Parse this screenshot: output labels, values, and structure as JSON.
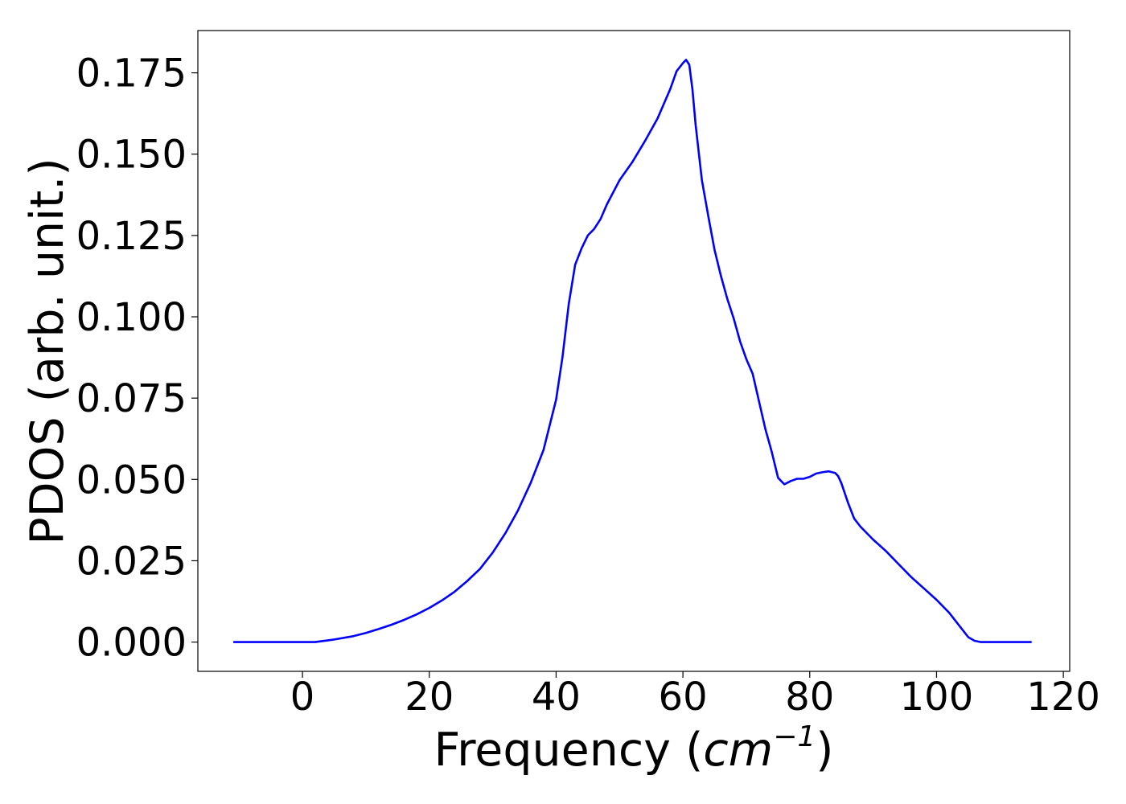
{
  "chart_data": {
    "type": "line",
    "title": "",
    "xlabel_main": "Frequency (",
    "xlabel_unit": "cm",
    "xlabel_exp": "−1",
    "xlabel_close": ")",
    "ylabel": "PDOS (arb. unit.)",
    "xlim": [
      -16.5,
      121
    ],
    "ylim": [
      -0.009,
      0.188
    ],
    "xticks": [
      0,
      20,
      40,
      60,
      80,
      100,
      120
    ],
    "xtick_labels": [
      "0",
      "20",
      "40",
      "60",
      "80",
      "100",
      "120"
    ],
    "yticks": [
      0.0,
      0.025,
      0.05,
      0.075,
      0.1,
      0.125,
      0.15,
      0.175
    ],
    "ytick_labels": [
      "0.000",
      "0.025",
      "0.050",
      "0.075",
      "0.100",
      "0.125",
      "0.150",
      "0.175"
    ],
    "grid": false,
    "series": [
      {
        "color": "#0000ff",
        "x": [
          -10.9,
          0,
          2,
          5,
          8,
          10,
          12,
          14,
          16,
          18,
          20,
          22,
          24,
          26,
          28,
          30,
          32,
          34,
          36,
          38,
          40,
          41,
          42,
          43,
          44,
          45,
          46,
          47,
          48,
          50,
          52,
          54,
          56,
          58,
          59,
          60,
          60.5,
          61,
          61.5,
          62,
          63,
          64,
          65,
          66,
          67,
          68,
          69,
          70,
          71,
          72,
          73,
          74,
          75,
          76,
          77,
          78,
          79,
          80,
          81,
          82,
          83,
          84,
          84.5,
          85,
          86,
          87,
          88,
          90,
          92,
          94,
          96,
          98,
          100,
          102,
          103,
          104,
          105,
          106,
          107,
          110,
          115
        ],
        "y": [
          0.0,
          0.0,
          0.0,
          0.0008,
          0.0018,
          0.0028,
          0.004,
          0.0053,
          0.0068,
          0.0085,
          0.0105,
          0.0128,
          0.0155,
          0.0188,
          0.0225,
          0.0275,
          0.0335,
          0.0405,
          0.049,
          0.059,
          0.0745,
          0.0875,
          0.104,
          0.116,
          0.121,
          0.125,
          0.127,
          0.13,
          0.1345,
          0.142,
          0.1475,
          0.154,
          0.161,
          0.17,
          0.1755,
          0.178,
          0.179,
          0.1775,
          0.17,
          0.159,
          0.142,
          0.131,
          0.1205,
          0.1125,
          0.1055,
          0.0995,
          0.0925,
          0.087,
          0.0825,
          0.074,
          0.0655,
          0.0585,
          0.0505,
          0.0485,
          0.0495,
          0.0502,
          0.0502,
          0.0508,
          0.0518,
          0.0522,
          0.0525,
          0.052,
          0.051,
          0.0488,
          0.043,
          0.038,
          0.0355,
          0.0315,
          0.028,
          0.024,
          0.02,
          0.0165,
          0.013,
          0.009,
          0.0065,
          0.004,
          0.0015,
          0.0004,
          0.0,
          0.0,
          0.0
        ]
      }
    ]
  }
}
